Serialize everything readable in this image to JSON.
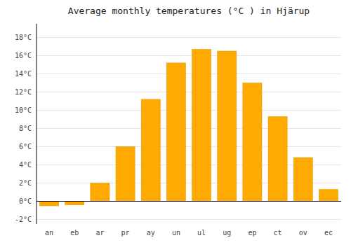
{
  "chart_data": {
    "type": "bar",
    "title": "Average monthly temperatures (°C ) in Hjärup",
    "categories": [
      "an",
      "eb",
      "ar",
      "pr",
      "ay",
      "un",
      "ul",
      "ug",
      "ep",
      "ct",
      "ov",
      "ec"
    ],
    "values": [
      -0.5,
      -0.4,
      2.0,
      6.0,
      11.2,
      15.2,
      16.7,
      16.5,
      13.0,
      9.3,
      4.8,
      1.3
    ],
    "color": "#FFAA00",
    "ylim": [
      -2.5,
      19.5
    ],
    "yticks": [
      {
        "value": -2,
        "label": "-2°C"
      },
      {
        "value": 0,
        "label": "0°C"
      },
      {
        "value": 2,
        "label": "2°C"
      },
      {
        "value": 4,
        "label": "4°C"
      },
      {
        "value": 6,
        "label": "6°C"
      },
      {
        "value": 8,
        "label": "8°C"
      },
      {
        "value": 10,
        "label": "10°C"
      },
      {
        "value": 12,
        "label": "12°C"
      },
      {
        "value": 14,
        "label": "14°C"
      },
      {
        "value": 16,
        "label": "16°C"
      },
      {
        "value": 18,
        "label": "18°C"
      }
    ],
    "grid": true
  }
}
